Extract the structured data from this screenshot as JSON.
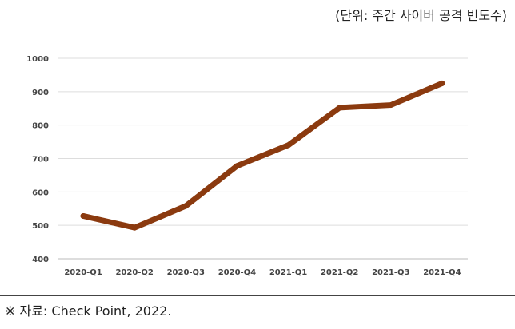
{
  "unit_note": "(단위: 주간 사이버 공격 빈도수)",
  "source_note": "※ 자료: Check Point, 2022.",
  "chart_data": {
    "type": "line",
    "categories": [
      "2020-Q1",
      "2020-Q2",
      "2020-Q3",
      "2020-Q4",
      "2021-Q1",
      "2021-Q2",
      "2021-Q3",
      "2021-Q4"
    ],
    "series": [
      {
        "values": [
          528,
          493,
          558,
          678,
          740,
          852,
          860,
          925
        ],
        "color": "#8B3A0F"
      }
    ],
    "y_ticks": [
      400,
      500,
      600,
      700,
      800,
      900,
      1000
    ],
    "ylim": [
      400,
      1000
    ],
    "grid": true,
    "legend": "none",
    "title": "",
    "xlabel": "",
    "ylabel": ""
  }
}
